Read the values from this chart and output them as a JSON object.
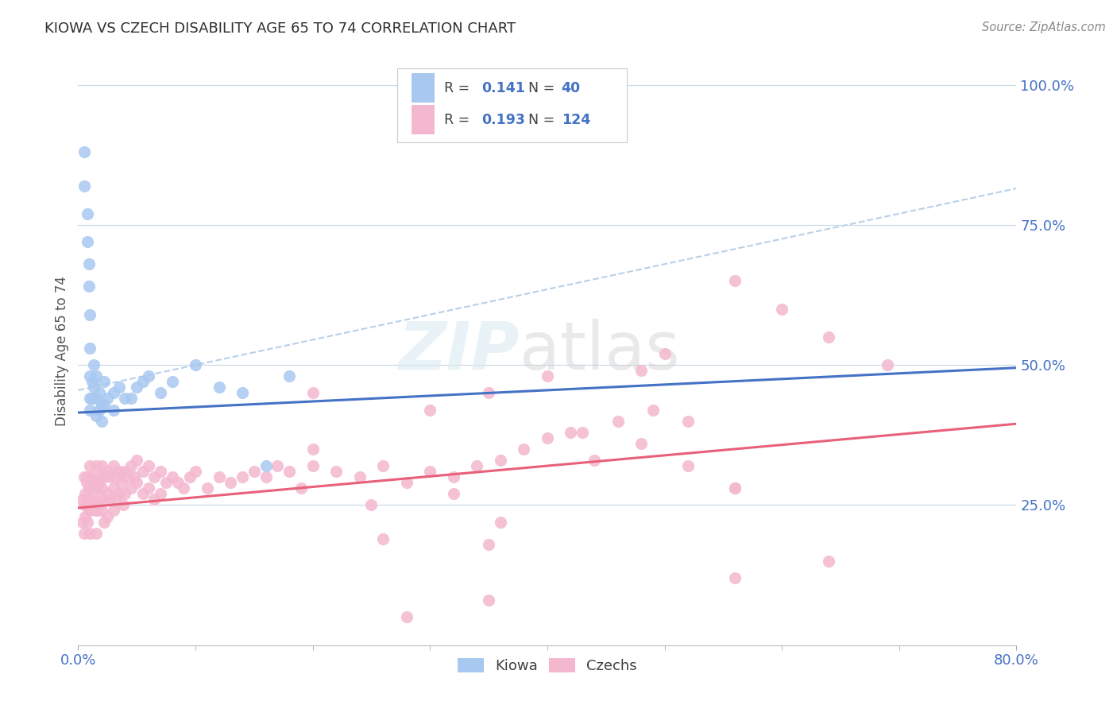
{
  "title": "KIOWA VS CZECH DISABILITY AGE 65 TO 74 CORRELATION CHART",
  "source_text": "Source: ZipAtlas.com",
  "ylabel": "Disability Age 65 to 74",
  "xmin": 0.0,
  "xmax": 0.8,
  "ymin": 0.0,
  "ymax": 1.05,
  "kiowa_color": "#a8c8f0",
  "czech_color": "#f4b8ce",
  "kiowa_line_color": "#4472c4",
  "czech_line_color": "#e8607a",
  "dash_line_color": "#b8d0e8",
  "background_color": "#ffffff",
  "grid_color": "#c8d8e8",
  "title_color": "#303030",
  "value_color": "#4472c4",
  "watermark_zip": "ZIP",
  "watermark_atlas": "atlas",
  "legend_label1": "R = 0.141   N =  40",
  "legend_label2": "R = 0.193   N = 124",
  "kiowa_trend": [
    0.0,
    0.8,
    0.415,
    0.495
  ],
  "czech_trend": [
    0.0,
    0.8,
    0.245,
    0.395
  ],
  "dash_trend": [
    0.0,
    0.8,
    0.455,
    0.815
  ],
  "kiowa_x": [
    0.005,
    0.005,
    0.008,
    0.008,
    0.009,
    0.009,
    0.01,
    0.01,
    0.01,
    0.01,
    0.01,
    0.012,
    0.012,
    0.013,
    0.013,
    0.015,
    0.015,
    0.015,
    0.018,
    0.018,
    0.02,
    0.02,
    0.022,
    0.022,
    0.025,
    0.03,
    0.03,
    0.035,
    0.04,
    0.045,
    0.05,
    0.055,
    0.06,
    0.07,
    0.08,
    0.1,
    0.12,
    0.14,
    0.16,
    0.18
  ],
  "kiowa_y": [
    0.88,
    0.82,
    0.77,
    0.72,
    0.68,
    0.64,
    0.59,
    0.53,
    0.48,
    0.44,
    0.42,
    0.47,
    0.44,
    0.5,
    0.46,
    0.48,
    0.44,
    0.41,
    0.45,
    0.42,
    0.43,
    0.4,
    0.47,
    0.43,
    0.44,
    0.45,
    0.42,
    0.46,
    0.44,
    0.44,
    0.46,
    0.47,
    0.48,
    0.45,
    0.47,
    0.5,
    0.46,
    0.45,
    0.32,
    0.48
  ],
  "czech_x": [
    0.004,
    0.004,
    0.005,
    0.005,
    0.005,
    0.006,
    0.006,
    0.007,
    0.007,
    0.008,
    0.008,
    0.008,
    0.009,
    0.009,
    0.01,
    0.01,
    0.01,
    0.01,
    0.012,
    0.012,
    0.013,
    0.013,
    0.015,
    0.015,
    0.015,
    0.015,
    0.016,
    0.016,
    0.017,
    0.017,
    0.018,
    0.018,
    0.02,
    0.02,
    0.02,
    0.022,
    0.022,
    0.022,
    0.025,
    0.025,
    0.025,
    0.027,
    0.027,
    0.03,
    0.03,
    0.03,
    0.032,
    0.032,
    0.035,
    0.035,
    0.037,
    0.038,
    0.04,
    0.04,
    0.042,
    0.045,
    0.045,
    0.048,
    0.05,
    0.05,
    0.055,
    0.055,
    0.06,
    0.06,
    0.065,
    0.065,
    0.07,
    0.07,
    0.075,
    0.08,
    0.085,
    0.09,
    0.095,
    0.1,
    0.11,
    0.12,
    0.13,
    0.14,
    0.15,
    0.16,
    0.17,
    0.18,
    0.19,
    0.2,
    0.22,
    0.24,
    0.26,
    0.28,
    0.3,
    0.32,
    0.34,
    0.36,
    0.38,
    0.4,
    0.43,
    0.46,
    0.49,
    0.52,
    0.56,
    0.6,
    0.64,
    0.69,
    0.64,
    0.56,
    0.4,
    0.35,
    0.3,
    0.25,
    0.2,
    0.35,
    0.28,
    0.42,
    0.35,
    0.5,
    0.48,
    0.52,
    0.56,
    0.44,
    0.36,
    0.32,
    0.26,
    0.2,
    0.48,
    0.56
  ],
  "czech_y": [
    0.26,
    0.22,
    0.3,
    0.25,
    0.2,
    0.27,
    0.23,
    0.29,
    0.25,
    0.3,
    0.26,
    0.22,
    0.28,
    0.24,
    0.32,
    0.28,
    0.24,
    0.2,
    0.3,
    0.26,
    0.29,
    0.25,
    0.32,
    0.28,
    0.24,
    0.2,
    0.28,
    0.24,
    0.3,
    0.26,
    0.29,
    0.25,
    0.32,
    0.28,
    0.24,
    0.3,
    0.26,
    0.22,
    0.31,
    0.27,
    0.23,
    0.3,
    0.26,
    0.32,
    0.28,
    0.24,
    0.3,
    0.26,
    0.31,
    0.27,
    0.29,
    0.25,
    0.31,
    0.27,
    0.3,
    0.32,
    0.28,
    0.3,
    0.33,
    0.29,
    0.31,
    0.27,
    0.32,
    0.28,
    0.3,
    0.26,
    0.31,
    0.27,
    0.29,
    0.3,
    0.29,
    0.28,
    0.3,
    0.31,
    0.28,
    0.3,
    0.29,
    0.3,
    0.31,
    0.3,
    0.32,
    0.31,
    0.28,
    0.32,
    0.31,
    0.3,
    0.32,
    0.29,
    0.31,
    0.3,
    0.32,
    0.33,
    0.35,
    0.37,
    0.38,
    0.4,
    0.42,
    0.4,
    0.65,
    0.6,
    0.55,
    0.5,
    0.15,
    0.12,
    0.48,
    0.45,
    0.42,
    0.25,
    0.35,
    0.08,
    0.05,
    0.38,
    0.18,
    0.52,
    0.49,
    0.32,
    0.28,
    0.33,
    0.22,
    0.27,
    0.19,
    0.45,
    0.36,
    0.28
  ]
}
